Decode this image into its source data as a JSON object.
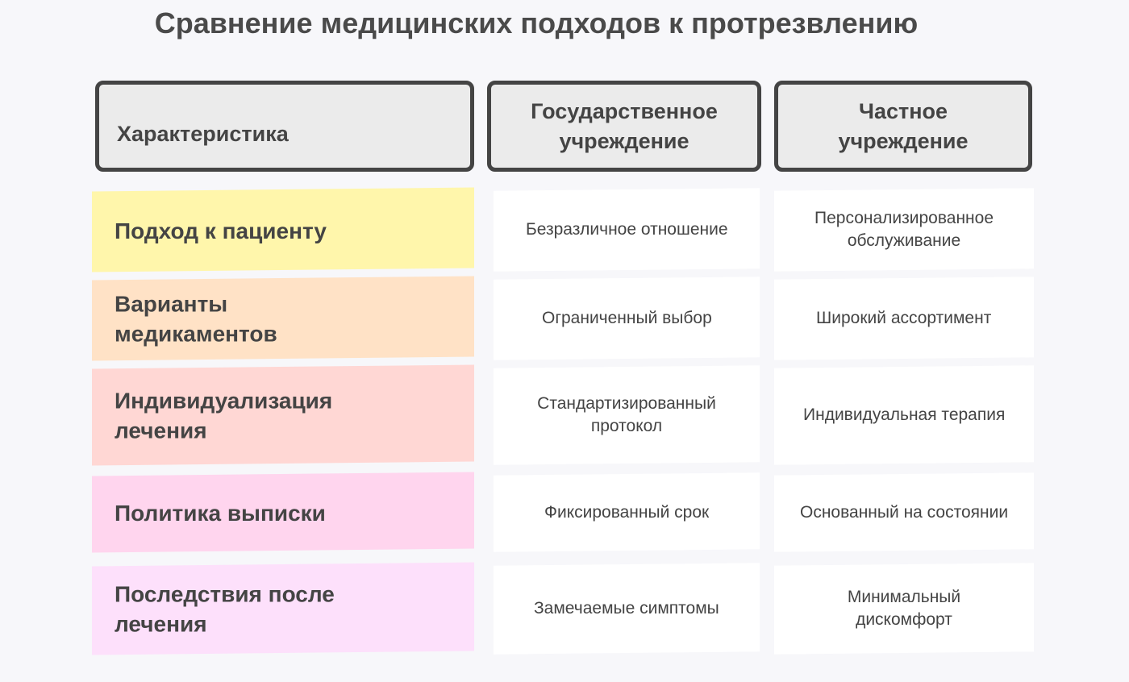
{
  "title": "Сравнение медицинских подходов к протрезвлению",
  "headers": [
    "Характеристика",
    "Государственное учреждение",
    "Частное учреждение"
  ],
  "rows": [
    {
      "label": "Подход к пациенту",
      "color": "#fff6ab",
      "public": "Безразличное отношение",
      "private": "Персонализированное обслуживание"
    },
    {
      "label": "Варианты медикаментов",
      "color": "#ffe2c6",
      "public": "Ограниченный выбор",
      "private": "Широкий ассортимент"
    },
    {
      "label": "Индивидуализация лечения",
      "color": "#ffd7d4",
      "public": "Стандартизированный протокол",
      "private": "Индивидуальная терапия"
    },
    {
      "label": "Политика выписки",
      "color": "#ffd5ee",
      "public": "Фиксированный срок",
      "private": "Основанный на состоянии"
    },
    {
      "label": "Последствия после лечения",
      "color": "#fde0fb",
      "public": "Замечаемые симптомы",
      "private": "Минимальный дискомфорт"
    }
  ]
}
